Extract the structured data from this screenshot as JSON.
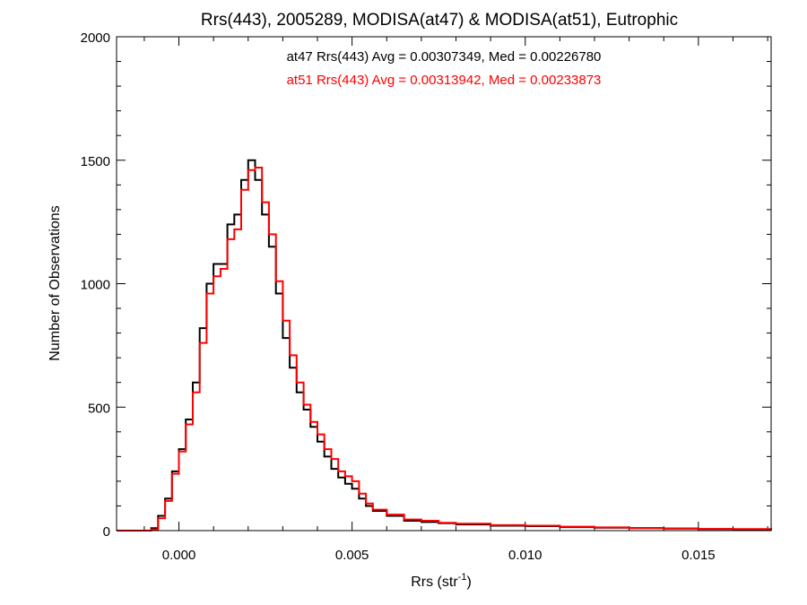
{
  "chart_data": {
    "type": "line",
    "title": "Rrs(443), 2005289, MODISA(at47) & MODISA(at51), Eutrophic",
    "xlabel": "Rrs (str",
    "xlabel_sup": "-1",
    "xlabel_end": ")",
    "ylabel": "Number of Observations",
    "xlim": [
      -0.0018,
      0.0171
    ],
    "ylim": [
      0,
      2000
    ],
    "x_ticks": [
      0.0,
      0.005,
      0.01,
      0.015
    ],
    "x_tick_labels": [
      "0.000",
      "0.005",
      "0.010",
      "0.015"
    ],
    "y_ticks": [
      0,
      500,
      1000,
      1500,
      2000
    ],
    "y_tick_labels": [
      "0",
      "500",
      "1000",
      "1500",
      "2000"
    ],
    "legend_placement": "top-center",
    "annotations": [
      {
        "text": "at47 Rrs(443) Avg = 0.00307349, Med = 0.00226780",
        "color": "#000000"
      },
      {
        "text": "at51 Rrs(443) Avg = 0.00313942, Med = 0.00233873",
        "color": "#ff0000"
      }
    ],
    "series": [
      {
        "color": "#000000",
        "x": [
          -0.0018,
          -0.0008,
          -0.0006,
          -0.0004,
          -0.0002,
          0.0,
          0.0002,
          0.0004,
          0.0006,
          0.0008,
          0.001,
          0.0012,
          0.0014,
          0.0016,
          0.0018,
          0.002,
          0.0022,
          0.0024,
          0.0026,
          0.0028,
          0.003,
          0.0032,
          0.0034,
          0.0036,
          0.0038,
          0.004,
          0.0042,
          0.0044,
          0.0046,
          0.0048,
          0.005,
          0.0052,
          0.0054,
          0.0056,
          0.006,
          0.0065,
          0.007,
          0.0075,
          0.008,
          0.009,
          0.01,
          0.011,
          0.012,
          0.013,
          0.014,
          0.015,
          0.016,
          0.0171
        ],
        "y": [
          0,
          10,
          60,
          130,
          240,
          330,
          450,
          600,
          820,
          1000,
          1080,
          1080,
          1240,
          1280,
          1420,
          1500,
          1420,
          1280,
          1150,
          960,
          780,
          660,
          560,
          490,
          420,
          360,
          300,
          250,
          215,
          190,
          170,
          130,
          100,
          80,
          60,
          40,
          35,
          30,
          25,
          20,
          18,
          14,
          12,
          10,
          8,
          6,
          5,
          3
        ]
      },
      {
        "color": "#ff0000",
        "x": [
          -0.0018,
          -0.0008,
          -0.0006,
          -0.0004,
          -0.0002,
          0.0,
          0.0002,
          0.0004,
          0.0006,
          0.0008,
          0.001,
          0.0012,
          0.0014,
          0.0016,
          0.0018,
          0.002,
          0.0022,
          0.0024,
          0.0026,
          0.0028,
          0.003,
          0.0032,
          0.0034,
          0.0036,
          0.0038,
          0.004,
          0.0042,
          0.0044,
          0.0046,
          0.0048,
          0.005,
          0.0052,
          0.0054,
          0.0056,
          0.006,
          0.0065,
          0.007,
          0.0075,
          0.008,
          0.009,
          0.01,
          0.011,
          0.012,
          0.013,
          0.014,
          0.015,
          0.016,
          0.0171
        ],
        "y": [
          0,
          5,
          50,
          120,
          230,
          320,
          430,
          560,
          760,
          960,
          1030,
          1060,
          1180,
          1220,
          1380,
          1460,
          1470,
          1330,
          1200,
          1010,
          850,
          710,
          600,
          510,
          440,
          390,
          330,
          290,
          240,
          220,
          200,
          150,
          110,
          85,
          65,
          45,
          40,
          32,
          28,
          22,
          20,
          16,
          13,
          11,
          9,
          7,
          6,
          4
        ]
      }
    ]
  }
}
